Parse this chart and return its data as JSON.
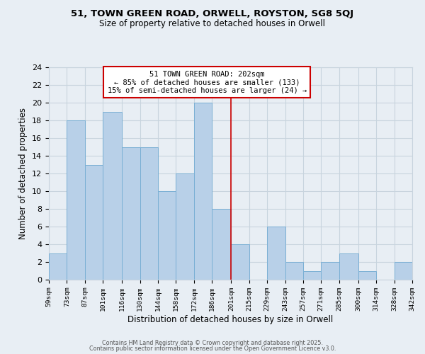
{
  "title1": "51, TOWN GREEN ROAD, ORWELL, ROYSTON, SG8 5QJ",
  "title2": "Size of property relative to detached houses in Orwell",
  "xlabel": "Distribution of detached houses by size in Orwell",
  "ylabel": "Number of detached properties",
  "bin_edges": [
    59,
    73,
    87,
    101,
    116,
    130,
    144,
    158,
    172,
    186,
    201,
    215,
    229,
    243,
    257,
    271,
    285,
    300,
    314,
    328,
    342
  ],
  "counts": [
    3,
    18,
    13,
    19,
    15,
    15,
    10,
    12,
    20,
    8,
    4,
    0,
    6,
    2,
    1,
    2,
    3,
    1,
    0,
    2
  ],
  "bar_color": "#b8d0e8",
  "bar_edge_color": "#7aafd4",
  "vline_x": 201,
  "vline_color": "#cc0000",
  "annotation_box_text": "51 TOWN GREEN ROAD: 202sqm\n← 85% of detached houses are smaller (133)\n15% of semi-detached houses are larger (24) →",
  "annotation_box_color": "#cc0000",
  "annotation_bg_color": "#ffffff",
  "footer1": "Contains HM Land Registry data © Crown copyright and database right 2025.",
  "footer2": "Contains public sector information licensed under the Open Government Licence v3.0.",
  "bg_color": "#e8eef4",
  "grid_color": "#c8d4de",
  "ylim": [
    0,
    24
  ],
  "yticks": [
    0,
    2,
    4,
    6,
    8,
    10,
    12,
    14,
    16,
    18,
    20,
    22,
    24
  ],
  "tick_labels": [
    "59sqm",
    "73sqm",
    "87sqm",
    "101sqm",
    "116sqm",
    "130sqm",
    "144sqm",
    "158sqm",
    "172sqm",
    "186sqm",
    "201sqm",
    "215sqm",
    "229sqm",
    "243sqm",
    "257sqm",
    "271sqm",
    "285sqm",
    "300sqm",
    "314sqm",
    "328sqm",
    "342sqm"
  ]
}
